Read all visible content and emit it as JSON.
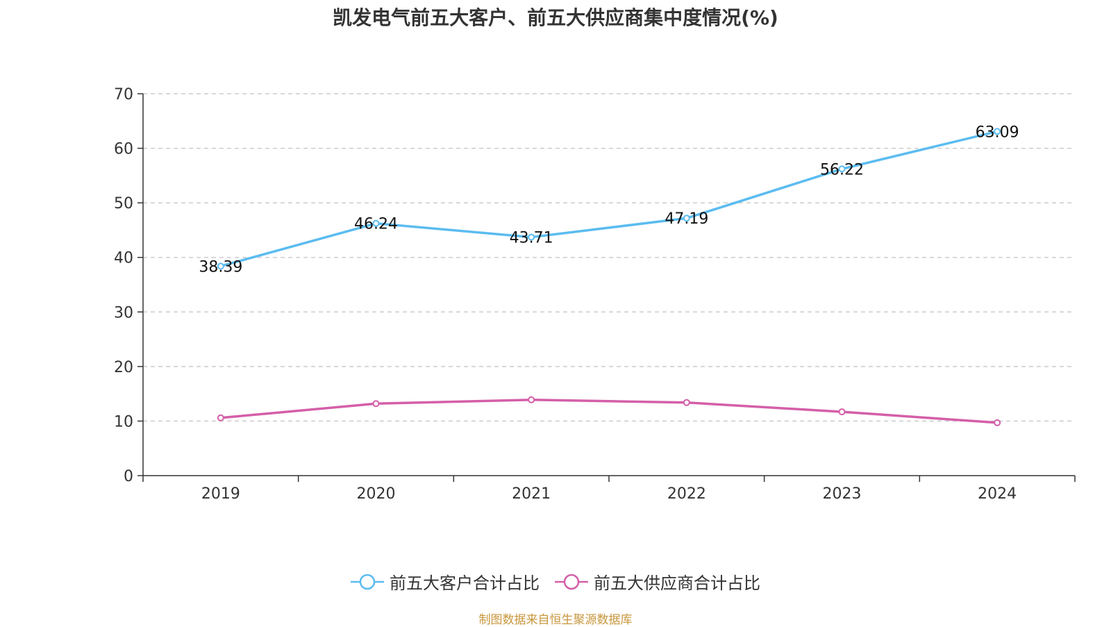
{
  "chart_data": {
    "type": "line",
    "title": "凯发电气前五大客户、前五大供应商集中度情况(%)",
    "categories": [
      "2019",
      "2020",
      "2021",
      "2022",
      "2023",
      "2024"
    ],
    "ylim": [
      0,
      70
    ],
    "yticks": [
      0,
      10,
      20,
      30,
      40,
      50,
      60,
      70
    ],
    "grid": true,
    "legend_position": "bottom",
    "series": [
      {
        "name": "前五大客户合计占比",
        "color": "#5bbcf0",
        "values": [
          38.39,
          46.24,
          43.71,
          47.19,
          56.22,
          63.09
        ],
        "show_labels": true
      },
      {
        "name": "前五大供应商合计占比",
        "color": "#d45fa8",
        "values": [
          10.6,
          13.2,
          13.9,
          13.4,
          11.7,
          9.7
        ],
        "show_labels": false
      }
    ]
  },
  "source": "制图数据来自恒生聚源数据库"
}
